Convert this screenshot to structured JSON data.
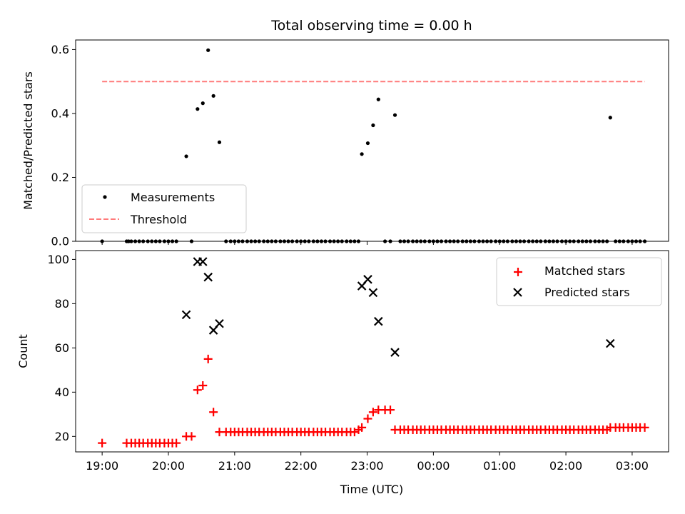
{
  "chart_data": [
    {
      "type": "scatter",
      "title": "Total observing time = 0.00 h",
      "ylabel": "Matched/Predicted stars",
      "xlabel": "",
      "ylim": [
        0,
        0.63
      ],
      "xlim": [
        18.6,
        27.55
      ],
      "yticks": [
        0.0,
        0.2,
        0.4,
        0.6
      ],
      "ytick_labels": [
        "0.0",
        "0.2",
        "0.4",
        "0.6"
      ],
      "grid": false,
      "legend_position": "lower-left",
      "series": [
        {
          "name": "Measurements",
          "kind": "scatter",
          "marker": "dot",
          "color": "#000000",
          "points": [
            [
              19.0,
              0
            ],
            [
              19.37,
              0
            ],
            [
              19.4,
              0
            ],
            [
              19.44,
              0
            ],
            [
              19.5,
              0
            ],
            [
              19.56,
              0
            ],
            [
              19.62,
              0
            ],
            [
              19.69,
              0
            ],
            [
              19.75,
              0
            ],
            [
              19.81,
              0
            ],
            [
              19.87,
              0
            ],
            [
              19.94,
              0
            ],
            [
              20.0,
              0
            ],
            [
              20.06,
              0
            ],
            [
              20.12,
              0
            ],
            [
              20.27,
              0.266
            ],
            [
              20.35,
              0
            ],
            [
              20.44,
              0.414
            ],
            [
              20.52,
              0.432
            ],
            [
              20.6,
              0.598
            ],
            [
              20.68,
              0.455
            ],
            [
              20.77,
              0.31
            ],
            [
              20.87,
              0
            ],
            [
              20.94,
              0
            ],
            [
              21.0,
              0
            ],
            [
              21.06,
              0
            ],
            [
              21.12,
              0
            ],
            [
              21.19,
              0
            ],
            [
              21.25,
              0
            ],
            [
              21.31,
              0
            ],
            [
              21.37,
              0
            ],
            [
              21.44,
              0
            ],
            [
              21.5,
              0
            ],
            [
              21.56,
              0
            ],
            [
              21.62,
              0
            ],
            [
              21.69,
              0
            ],
            [
              21.75,
              0
            ],
            [
              21.81,
              0
            ],
            [
              21.87,
              0
            ],
            [
              21.94,
              0
            ],
            [
              22.0,
              0
            ],
            [
              22.06,
              0
            ],
            [
              22.12,
              0
            ],
            [
              22.19,
              0
            ],
            [
              22.25,
              0
            ],
            [
              22.31,
              0
            ],
            [
              22.37,
              0
            ],
            [
              22.44,
              0
            ],
            [
              22.5,
              0
            ],
            [
              22.56,
              0
            ],
            [
              22.62,
              0
            ],
            [
              22.69,
              0
            ],
            [
              22.75,
              0
            ],
            [
              22.81,
              0
            ],
            [
              22.87,
              0
            ],
            [
              22.92,
              0.273
            ],
            [
              23.01,
              0.307
            ],
            [
              23.09,
              0.363
            ],
            [
              23.17,
              0.444
            ],
            [
              23.27,
              0
            ],
            [
              23.35,
              0
            ],
            [
              23.42,
              0.395
            ],
            [
              23.5,
              0
            ],
            [
              23.56,
              0
            ],
            [
              23.62,
              0
            ],
            [
              23.69,
              0
            ],
            [
              23.75,
              0
            ],
            [
              23.81,
              0
            ],
            [
              23.87,
              0
            ],
            [
              23.94,
              0
            ],
            [
              24.0,
              0
            ],
            [
              24.06,
              0
            ],
            [
              24.12,
              0
            ],
            [
              24.19,
              0
            ],
            [
              24.25,
              0
            ],
            [
              24.31,
              0
            ],
            [
              24.37,
              0
            ],
            [
              24.44,
              0
            ],
            [
              24.5,
              0
            ],
            [
              24.56,
              0
            ],
            [
              24.62,
              0
            ],
            [
              24.69,
              0
            ],
            [
              24.75,
              0
            ],
            [
              24.81,
              0
            ],
            [
              24.87,
              0
            ],
            [
              24.94,
              0
            ],
            [
              25.0,
              0
            ],
            [
              25.06,
              0
            ],
            [
              25.12,
              0
            ],
            [
              25.19,
              0
            ],
            [
              25.25,
              0
            ],
            [
              25.31,
              0
            ],
            [
              25.37,
              0
            ],
            [
              25.44,
              0
            ],
            [
              25.5,
              0
            ],
            [
              25.56,
              0
            ],
            [
              25.62,
              0
            ],
            [
              25.69,
              0
            ],
            [
              25.75,
              0
            ],
            [
              25.81,
              0
            ],
            [
              25.87,
              0
            ],
            [
              25.94,
              0
            ],
            [
              26.0,
              0
            ],
            [
              26.06,
              0
            ],
            [
              26.12,
              0
            ],
            [
              26.19,
              0
            ],
            [
              26.25,
              0
            ],
            [
              26.31,
              0
            ],
            [
              26.37,
              0
            ],
            [
              26.44,
              0
            ],
            [
              26.5,
              0
            ],
            [
              26.56,
              0
            ],
            [
              26.62,
              0
            ],
            [
              26.67,
              0.387
            ],
            [
              26.75,
              0
            ],
            [
              26.81,
              0
            ],
            [
              26.87,
              0
            ],
            [
              26.94,
              0
            ],
            [
              27.0,
              0
            ],
            [
              27.06,
              0
            ],
            [
              27.12,
              0
            ],
            [
              27.19,
              0
            ]
          ]
        },
        {
          "name": "Threshold",
          "kind": "line",
          "dashed": true,
          "color": "#ff7b7b",
          "points": [
            [
              19.0,
              0.5
            ],
            [
              27.19,
              0.5
            ]
          ]
        }
      ]
    },
    {
      "type": "scatter",
      "title": "",
      "ylabel": "Count",
      "xlabel": "Time (UTC)",
      "ylim": [
        13,
        104
      ],
      "xlim": [
        18.6,
        27.55
      ],
      "yticks": [
        20,
        40,
        60,
        80,
        100
      ],
      "ytick_labels": [
        "20",
        "40",
        "60",
        "80",
        "100"
      ],
      "xticks": [
        19,
        20,
        21,
        22,
        23,
        24,
        25,
        26,
        27
      ],
      "xtick_labels": [
        "19:00",
        "20:00",
        "21:00",
        "22:00",
        "23:00",
        "00:00",
        "01:00",
        "02:00",
        "03:00"
      ],
      "grid": false,
      "legend_position": "upper-right",
      "series": [
        {
          "name": "Matched stars",
          "kind": "scatter",
          "marker": "plus",
          "color": "#ff0000",
          "points": [
            [
              19.0,
              17
            ],
            [
              19.37,
              17
            ],
            [
              19.44,
              17
            ],
            [
              19.5,
              17
            ],
            [
              19.56,
              17
            ],
            [
              19.62,
              17
            ],
            [
              19.69,
              17
            ],
            [
              19.75,
              17
            ],
            [
              19.81,
              17
            ],
            [
              19.87,
              17
            ],
            [
              19.94,
              17
            ],
            [
              20.0,
              17
            ],
            [
              20.06,
              17
            ],
            [
              20.12,
              17
            ],
            [
              20.27,
              20
            ],
            [
              20.35,
              20
            ],
            [
              20.44,
              41
            ],
            [
              20.52,
              43
            ],
            [
              20.6,
              55
            ],
            [
              20.68,
              31
            ],
            [
              20.77,
              22
            ],
            [
              20.87,
              22
            ],
            [
              20.94,
              22
            ],
            [
              21.0,
              22
            ],
            [
              21.06,
              22
            ],
            [
              21.12,
              22
            ],
            [
              21.19,
              22
            ],
            [
              21.25,
              22
            ],
            [
              21.31,
              22
            ],
            [
              21.37,
              22
            ],
            [
              21.44,
              22
            ],
            [
              21.5,
              22
            ],
            [
              21.56,
              22
            ],
            [
              21.62,
              22
            ],
            [
              21.69,
              22
            ],
            [
              21.75,
              22
            ],
            [
              21.81,
              22
            ],
            [
              21.87,
              22
            ],
            [
              21.94,
              22
            ],
            [
              22.0,
              22
            ],
            [
              22.06,
              22
            ],
            [
              22.12,
              22
            ],
            [
              22.19,
              22
            ],
            [
              22.25,
              22
            ],
            [
              22.31,
              22
            ],
            [
              22.37,
              22
            ],
            [
              22.44,
              22
            ],
            [
              22.5,
              22
            ],
            [
              22.56,
              22
            ],
            [
              22.62,
              22
            ],
            [
              22.69,
              22
            ],
            [
              22.75,
              22
            ],
            [
              22.81,
              22
            ],
            [
              22.87,
              23
            ],
            [
              22.92,
              24
            ],
            [
              23.01,
              28
            ],
            [
              23.09,
              31
            ],
            [
              23.17,
              32
            ],
            [
              23.27,
              32
            ],
            [
              23.35,
              32
            ],
            [
              23.42,
              23
            ],
            [
              23.5,
              23
            ],
            [
              23.56,
              23
            ],
            [
              23.62,
              23
            ],
            [
              23.69,
              23
            ],
            [
              23.75,
              23
            ],
            [
              23.81,
              23
            ],
            [
              23.87,
              23
            ],
            [
              23.94,
              23
            ],
            [
              24.0,
              23
            ],
            [
              24.06,
              23
            ],
            [
              24.12,
              23
            ],
            [
              24.19,
              23
            ],
            [
              24.25,
              23
            ],
            [
              24.31,
              23
            ],
            [
              24.37,
              23
            ],
            [
              24.44,
              23
            ],
            [
              24.5,
              23
            ],
            [
              24.56,
              23
            ],
            [
              24.62,
              23
            ],
            [
              24.69,
              23
            ],
            [
              24.75,
              23
            ],
            [
              24.81,
              23
            ],
            [
              24.87,
              23
            ],
            [
              24.94,
              23
            ],
            [
              25.0,
              23
            ],
            [
              25.06,
              23
            ],
            [
              25.12,
              23
            ],
            [
              25.19,
              23
            ],
            [
              25.25,
              23
            ],
            [
              25.31,
              23
            ],
            [
              25.37,
              23
            ],
            [
              25.44,
              23
            ],
            [
              25.5,
              23
            ],
            [
              25.56,
              23
            ],
            [
              25.62,
              23
            ],
            [
              25.69,
              23
            ],
            [
              25.75,
              23
            ],
            [
              25.81,
              23
            ],
            [
              25.87,
              23
            ],
            [
              25.94,
              23
            ],
            [
              26.0,
              23
            ],
            [
              26.06,
              23
            ],
            [
              26.12,
              23
            ],
            [
              26.19,
              23
            ],
            [
              26.25,
              23
            ],
            [
              26.31,
              23
            ],
            [
              26.37,
              23
            ],
            [
              26.44,
              23
            ],
            [
              26.5,
              23
            ],
            [
              26.56,
              23
            ],
            [
              26.62,
              23
            ],
            [
              26.67,
              24
            ],
            [
              26.75,
              24
            ],
            [
              26.81,
              24
            ],
            [
              26.87,
              24
            ],
            [
              26.94,
              24
            ],
            [
              27.0,
              24
            ],
            [
              27.06,
              24
            ],
            [
              27.12,
              24
            ],
            [
              27.19,
              24
            ]
          ]
        },
        {
          "name": "Predicted stars",
          "kind": "scatter",
          "marker": "x",
          "color": "#000000",
          "points": [
            [
              20.27,
              75
            ],
            [
              20.44,
              99
            ],
            [
              20.52,
              99
            ],
            [
              20.6,
              92
            ],
            [
              20.68,
              68
            ],
            [
              20.77,
              71
            ],
            [
              22.92,
              88
            ],
            [
              23.01,
              91
            ],
            [
              23.09,
              85
            ],
            [
              23.17,
              72
            ],
            [
              23.42,
              58
            ],
            [
              26.67,
              62
            ]
          ]
        }
      ]
    }
  ]
}
